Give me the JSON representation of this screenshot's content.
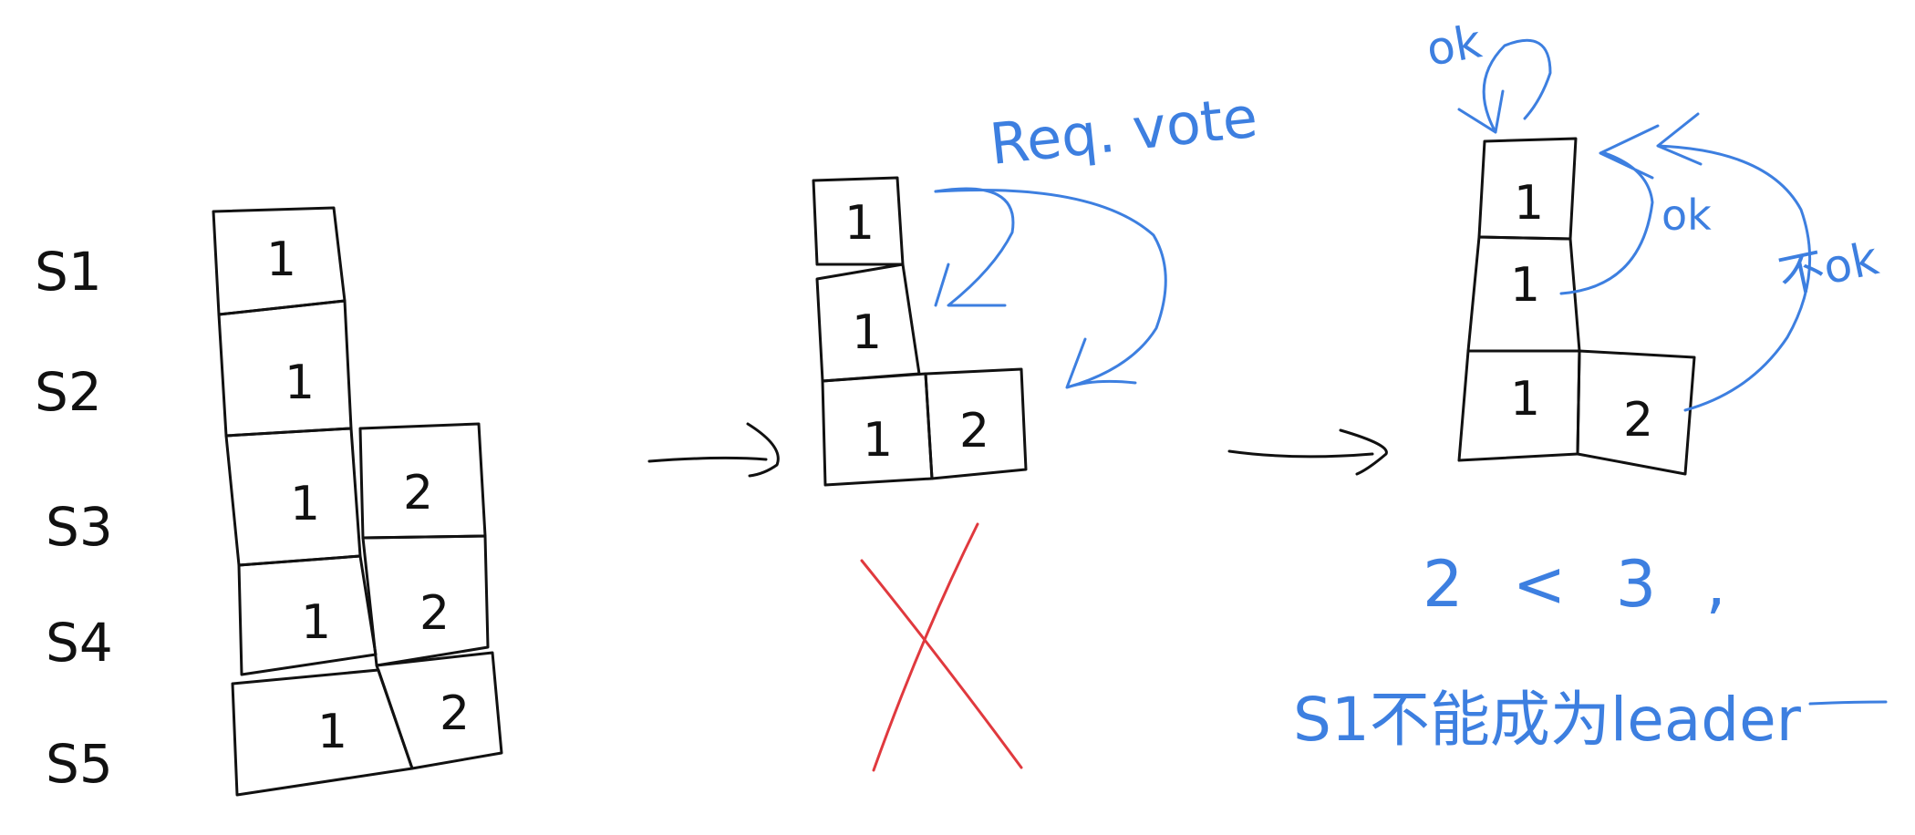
{
  "colors": {
    "ink": "#111111",
    "annotation": "#3d7fe0",
    "reject": "#e0393e"
  },
  "stage1": {
    "servers": [
      "S1",
      "S2",
      "S3",
      "S4",
      "S5"
    ],
    "logs": {
      "s1": [
        "1"
      ],
      "s2": [
        "1"
      ],
      "s3": [
        "1",
        "2"
      ],
      "s4": [
        "1",
        "2"
      ],
      "s5": [
        "1",
        "2"
      ]
    }
  },
  "stage2": {
    "col1": [
      "1",
      "1",
      "1"
    ],
    "col2": [
      "2"
    ],
    "request_label": "Req. vote",
    "mark": "X"
  },
  "stage3": {
    "col1": [
      "1",
      "1",
      "1"
    ],
    "col2": [
      "2"
    ],
    "self_ok": "ok",
    "ok_label": "ok",
    "not_ok_label": "不ok",
    "conclusion_line1": "2 < 3 ,",
    "conclusion_line2": "S1不能成为leader"
  }
}
